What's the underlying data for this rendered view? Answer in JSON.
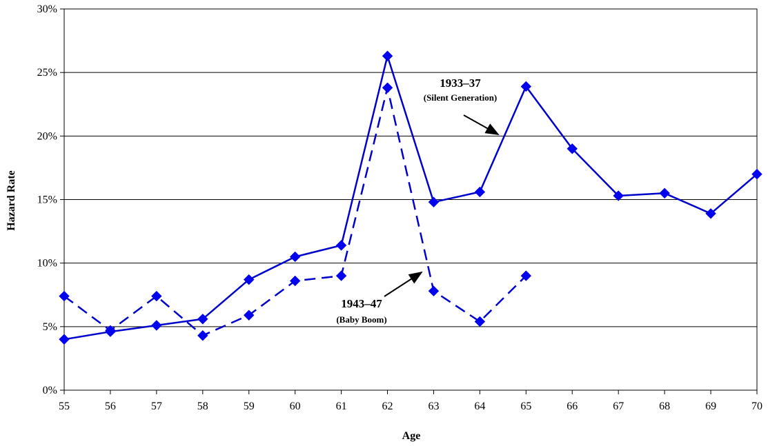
{
  "chart_data": {
    "type": "line",
    "title": "",
    "xlabel": "Age",
    "ylabel": "Hazard Rate",
    "x": [
      55,
      56,
      57,
      58,
      59,
      60,
      61,
      62,
      63,
      64,
      65,
      66,
      67,
      68,
      69,
      70
    ],
    "x_tick_labels": [
      "55",
      "56",
      "57",
      "58",
      "59",
      "60",
      "61",
      "62",
      "63",
      "64",
      "65",
      "66",
      "67",
      "68",
      "69",
      "70"
    ],
    "y_ticks": [
      0,
      5,
      10,
      15,
      20,
      25,
      30
    ],
    "y_tick_labels": [
      "0%",
      "5%",
      "10%",
      "15%",
      "20%",
      "25%",
      "30%"
    ],
    "ylim": [
      0,
      30
    ],
    "xlim": [
      55,
      70
    ],
    "grid": "horizontal",
    "legend": "none",
    "colors": {
      "series": "#0000cc",
      "marker": "#0000ee",
      "grid": "#000000",
      "arrow": "#000000"
    },
    "series": [
      {
        "style": "solid",
        "x": [
          55,
          56,
          57,
          58,
          59,
          60,
          61,
          62,
          63,
          64,
          65,
          66,
          67,
          68,
          69,
          70
        ],
        "values": [
          4.0,
          4.6,
          5.1,
          5.6,
          8.7,
          10.5,
          11.4,
          26.3,
          14.8,
          15.6,
          23.9,
          19.0,
          15.3,
          15.5,
          13.9,
          17.0
        ]
      },
      {
        "style": "dashed",
        "x": [
          55,
          56,
          57,
          58,
          59,
          60,
          61,
          62,
          63,
          64,
          65
        ],
        "values": [
          7.4,
          4.7,
          7.4,
          4.3,
          5.9,
          8.6,
          9.0,
          23.8,
          7.8,
          5.4,
          9.0
        ]
      }
    ],
    "annotations": [
      {
        "label": "1933–37",
        "sublabel": "(Silent Generation)"
      },
      {
        "label": "1943–47",
        "sublabel": "(Baby Boom)"
      }
    ]
  }
}
